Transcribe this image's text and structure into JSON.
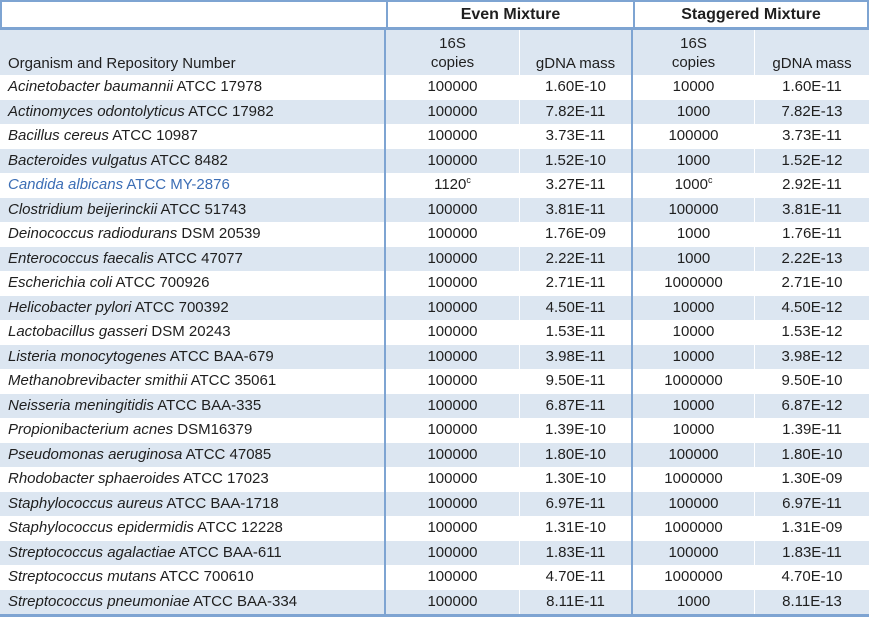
{
  "colors": {
    "rule_blue": "#7ea4d2",
    "row_stripe_blue": "#dce6f1",
    "text_dark": "#1f1f1f",
    "highlight_row_text_blue": "#3c6eb5"
  },
  "header": {
    "group_even": "Even Mixture",
    "group_staggered": "Staggered Mixture",
    "organism_col": "Organism and Repository Number",
    "copies_line1": "16S",
    "copies_line2": "copies",
    "gdna_label": "gDNA mass"
  },
  "table": {
    "rows": [
      {
        "organism_italic": "Acinetobacter baumannii",
        "organism_rest": "ATCC 17978",
        "even_copies": "100000",
        "even_copies_sup": "",
        "even_gdna": "1.60E-10",
        "stag_copies": "10000",
        "stag_copies_sup": "",
        "stag_gdna": "1.60E-11",
        "highlight": false
      },
      {
        "organism_italic": "Actinomyces odontolyticus",
        "organism_rest": "ATCC 17982",
        "even_copies": "100000",
        "even_copies_sup": "",
        "even_gdna": "7.82E-11",
        "stag_copies": "1000",
        "stag_copies_sup": "",
        "stag_gdna": "7.82E-13",
        "highlight": false
      },
      {
        "organism_italic": "Bacillus cereus",
        "organism_rest": "ATCC 10987",
        "even_copies": "100000",
        "even_copies_sup": "",
        "even_gdna": "3.73E-11",
        "stag_copies": "100000",
        "stag_copies_sup": "",
        "stag_gdna": "3.73E-11",
        "highlight": false
      },
      {
        "organism_italic": "Bacteroides vulgatus",
        "organism_rest": "ATCC 8482",
        "even_copies": "100000",
        "even_copies_sup": "",
        "even_gdna": "1.52E-10",
        "stag_copies": "1000",
        "stag_copies_sup": "",
        "stag_gdna": "1.52E-12",
        "highlight": false
      },
      {
        "organism_italic": "Candida albicans",
        "organism_rest": "ATCC MY-2876",
        "even_copies": "1120",
        "even_copies_sup": "c",
        "even_gdna": "3.27E-11",
        "stag_copies": "1000",
        "stag_copies_sup": "c",
        "stag_gdna": "2.92E-11",
        "highlight": true
      },
      {
        "organism_italic": "Clostridium beijerinckii",
        "organism_rest": "ATCC 51743",
        "even_copies": "100000",
        "even_copies_sup": "",
        "even_gdna": "3.81E-11",
        "stag_copies": "100000",
        "stag_copies_sup": "",
        "stag_gdna": "3.81E-11",
        "highlight": false
      },
      {
        "organism_italic": "Deinococcus radiodurans",
        "organism_rest": "DSM 20539",
        "even_copies": "100000",
        "even_copies_sup": "",
        "even_gdna": "1.76E-09",
        "stag_copies": "1000",
        "stag_copies_sup": "",
        "stag_gdna": "1.76E-11",
        "highlight": false
      },
      {
        "organism_italic": "Enterococcus faecalis",
        "organism_rest": "ATCC 47077",
        "even_copies": "100000",
        "even_copies_sup": "",
        "even_gdna": "2.22E-11",
        "stag_copies": "1000",
        "stag_copies_sup": "",
        "stag_gdna": "2.22E-13",
        "highlight": false
      },
      {
        "organism_italic": "Escherichia coli",
        "organism_rest": "ATCC 700926",
        "even_copies": "100000",
        "even_copies_sup": "",
        "even_gdna": "2.71E-11",
        "stag_copies": "1000000",
        "stag_copies_sup": "",
        "stag_gdna": "2.71E-10",
        "highlight": false
      },
      {
        "organism_italic": "Helicobacter pylori",
        "organism_rest": "ATCC 700392",
        "even_copies": "100000",
        "even_copies_sup": "",
        "even_gdna": "4.50E-11",
        "stag_copies": "10000",
        "stag_copies_sup": "",
        "stag_gdna": "4.50E-12",
        "highlight": false
      },
      {
        "organism_italic": "Lactobacillus gasseri",
        "organism_rest": "DSM 20243",
        "even_copies": "100000",
        "even_copies_sup": "",
        "even_gdna": "1.53E-11",
        "stag_copies": "10000",
        "stag_copies_sup": "",
        "stag_gdna": "1.53E-12",
        "highlight": false
      },
      {
        "organism_italic": "Listeria monocytogenes",
        "organism_rest": "ATCC BAA-679",
        "even_copies": "100000",
        "even_copies_sup": "",
        "even_gdna": "3.98E-11",
        "stag_copies": "10000",
        "stag_copies_sup": "",
        "stag_gdna": "3.98E-12",
        "highlight": false
      },
      {
        "organism_italic": "Methanobrevibacter smithii",
        "organism_rest": "ATCC 35061",
        "even_copies": "100000",
        "even_copies_sup": "",
        "even_gdna": "9.50E-11",
        "stag_copies": "1000000",
        "stag_copies_sup": "",
        "stag_gdna": "9.50E-10",
        "highlight": false
      },
      {
        "organism_italic": "Neisseria meningitidis",
        "organism_rest": "ATCC BAA-335",
        "even_copies": "100000",
        "even_copies_sup": "",
        "even_gdna": "6.87E-11",
        "stag_copies": "10000",
        "stag_copies_sup": "",
        "stag_gdna": "6.87E-12",
        "highlight": false
      },
      {
        "organism_italic": "Propionibacterium acnes",
        "organism_rest": "DSM16379",
        "even_copies": "100000",
        "even_copies_sup": "",
        "even_gdna": "1.39E-10",
        "stag_copies": "10000",
        "stag_copies_sup": "",
        "stag_gdna": "1.39E-11",
        "highlight": false
      },
      {
        "organism_italic": "Pseudomonas aeruginosa",
        "organism_rest": "ATCC 47085",
        "even_copies": "100000",
        "even_copies_sup": "",
        "even_gdna": "1.80E-10",
        "stag_copies": "100000",
        "stag_copies_sup": "",
        "stag_gdna": "1.80E-10",
        "highlight": false
      },
      {
        "organism_italic": "Rhodobacter sphaeroides",
        "organism_rest": "ATCC 17023",
        "even_copies": "100000",
        "even_copies_sup": "",
        "even_gdna": "1.30E-10",
        "stag_copies": "1000000",
        "stag_copies_sup": "",
        "stag_gdna": "1.30E-09",
        "highlight": false
      },
      {
        "organism_italic": "Staphylococcus aureus",
        "organism_rest": "ATCC BAA-1718",
        "even_copies": "100000",
        "even_copies_sup": "",
        "even_gdna": "6.97E-11",
        "stag_copies": "100000",
        "stag_copies_sup": "",
        "stag_gdna": "6.97E-11",
        "highlight": false
      },
      {
        "organism_italic": "Staphylococcus epidermidis",
        "organism_rest": "ATCC 12228",
        "even_copies": "100000",
        "even_copies_sup": "",
        "even_gdna": "1.31E-10",
        "stag_copies": "1000000",
        "stag_copies_sup": "",
        "stag_gdna": "1.31E-09",
        "highlight": false
      },
      {
        "organism_italic": "Streptococcus agalactiae",
        "organism_rest": "ATCC BAA-611",
        "even_copies": "100000",
        "even_copies_sup": "",
        "even_gdna": "1.83E-11",
        "stag_copies": "100000",
        "stag_copies_sup": "",
        "stag_gdna": "1.83E-11",
        "highlight": false
      },
      {
        "organism_italic": "Streptococcus mutans",
        "organism_rest": "ATCC 700610",
        "even_copies": "100000",
        "even_copies_sup": "",
        "even_gdna": "4.70E-11",
        "stag_copies": "1000000",
        "stag_copies_sup": "",
        "stag_gdna": "4.70E-10",
        "highlight": false
      },
      {
        "organism_italic": "Streptococcus pneumoniae",
        "organism_rest": "ATCC BAA-334",
        "even_copies": "100000",
        "even_copies_sup": "",
        "even_gdna": "8.11E-11",
        "stag_copies": "1000",
        "stag_copies_sup": "",
        "stag_gdna": "8.11E-13",
        "highlight": false
      }
    ]
  }
}
